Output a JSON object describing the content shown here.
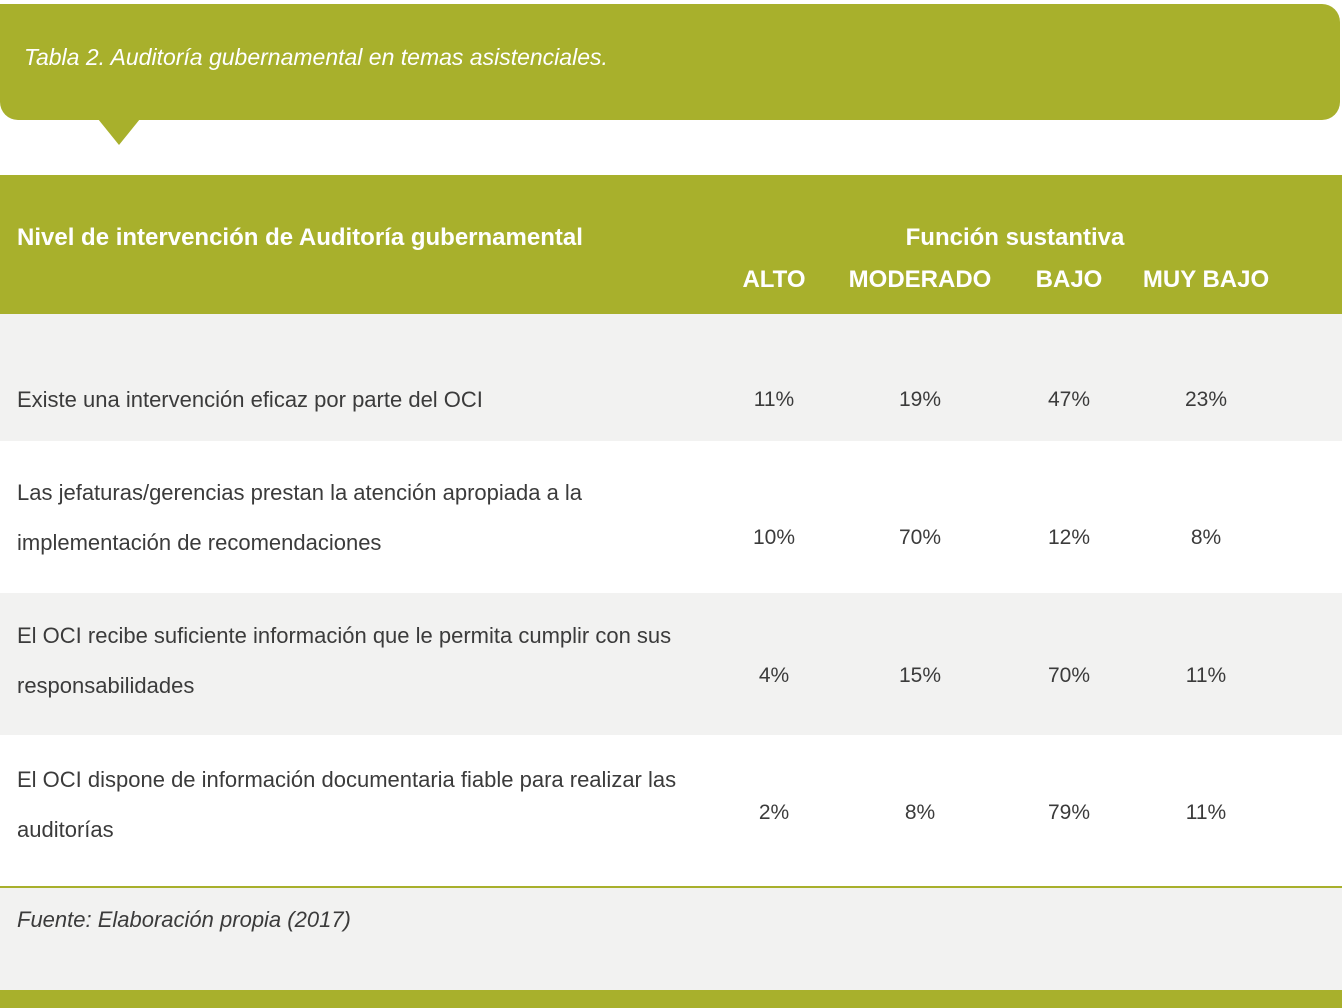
{
  "title": "Tabla 2. Auditoría gubernamental en temas asistenciales.",
  "table": {
    "group_header": "Función sustantiva",
    "columns": [
      "Nivel de intervención de Auditoría gubernamental",
      "ALTO",
      "MODERADO",
      "BAJO",
      "MUY BAJO"
    ],
    "rows": [
      [
        "Existe una intervención eficaz por parte del OCI",
        "11%",
        "19%",
        "47%",
        "23%"
      ],
      [
        "Las jefaturas/gerencias prestan la atención apropiada a la implementación de recomendaciones",
        "10%",
        "70%",
        "12%",
        "8%"
      ],
      [
        "El OCI recibe suficiente información que le permita cumplir con sus responsabilidades",
        "4%",
        "15%",
        "70%",
        "11%"
      ],
      [
        "El OCI dispone de información documentaria fiable para realizar las auditorías",
        "2%",
        "8%",
        "79%",
        "11%"
      ]
    ]
  },
  "source": "Fuente: Elaboración propia (2017)"
}
